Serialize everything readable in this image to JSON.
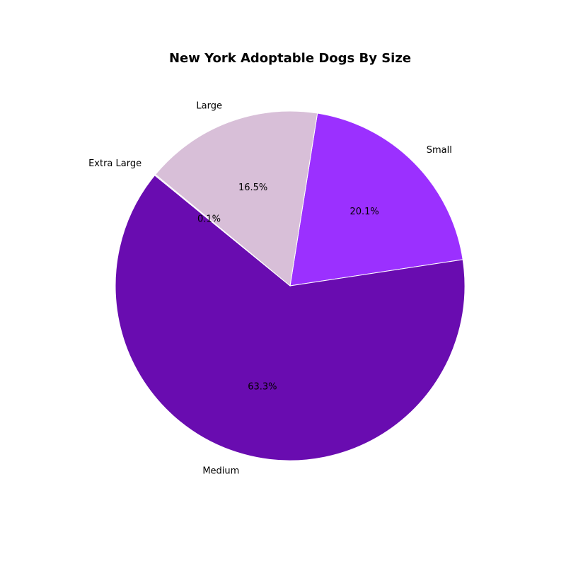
{
  "chart_data": {
    "type": "pie",
    "title": "New York Adoptable Dogs By Size",
    "slices": [
      {
        "label": "Small",
        "value": 20.1,
        "pct_label": "20.1%",
        "color": "#9b30ff"
      },
      {
        "label": "Medium",
        "value": 63.3,
        "pct_label": "63.3%",
        "color": "#690cb0"
      },
      {
        "label": "Extra Large",
        "value": 0.1,
        "pct_label": "0.1%",
        "color": "#e8d8ec"
      },
      {
        "label": "Large",
        "value": 16.5,
        "pct_label": "16.5%",
        "color": "#d8bfd8"
      }
    ],
    "start_angle_deg": 81,
    "direction": "clockwise",
    "legend": "none"
  }
}
